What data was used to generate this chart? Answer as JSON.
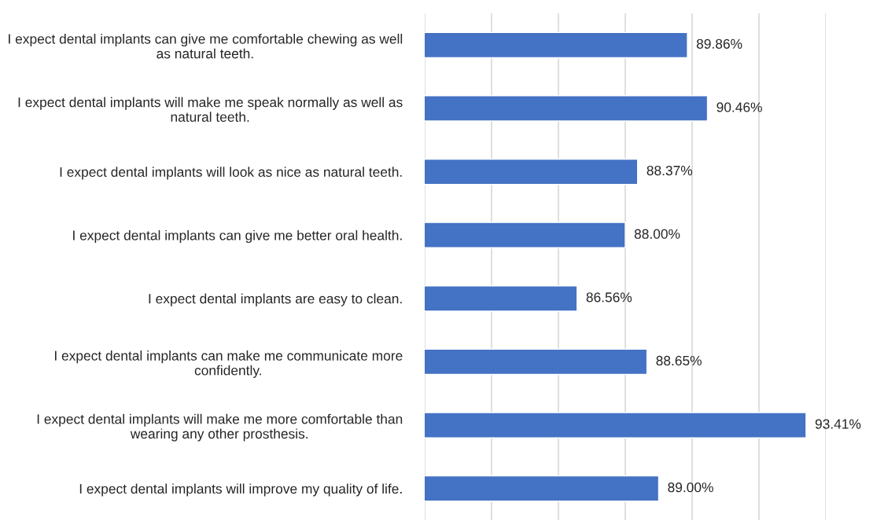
{
  "chart_data": {
    "type": "bar",
    "orientation": "horizontal",
    "categories": [
      "I expect dental implants can give me comfortable chewing as well\nas natural teeth.",
      "I expect dental implants will make me speak normally as well as\nnatural teeth.",
      "I expect dental implants will look as nice as natural teeth.",
      "I expect dental implants can give me better oral health.",
      "I expect dental implants are easy to clean.",
      "I expect dental implants can make me communicate more\nconfidently.",
      "I expect dental implants will make me more comfortable than\nwearing any other prosthesis.",
      "I expect dental implants will improve my quality of life."
    ],
    "values": [
      89.86,
      90.46,
      88.37,
      88.0,
      86.56,
      88.65,
      93.41,
      89.0
    ],
    "value_labels": [
      "89.86%",
      "90.46%",
      "88.37%",
      "88.00%",
      "86.56%",
      "88.65%",
      "93.41%",
      "89.00%"
    ],
    "color": "#4472c4",
    "xlim": [
      82,
      94
    ],
    "xticks": [
      {
        "value": 82,
        "label": null
      },
      {
        "value": 84,
        "label": null
      },
      {
        "value": 86,
        "label": null
      },
      {
        "value": 88,
        "label": null
      },
      {
        "value": 90,
        "label": null
      },
      {
        "value": 92,
        "label": null
      },
      {
        "value": 94,
        "label": null
      }
    ],
    "grid": "x",
    "tick_labels": "y"
  }
}
